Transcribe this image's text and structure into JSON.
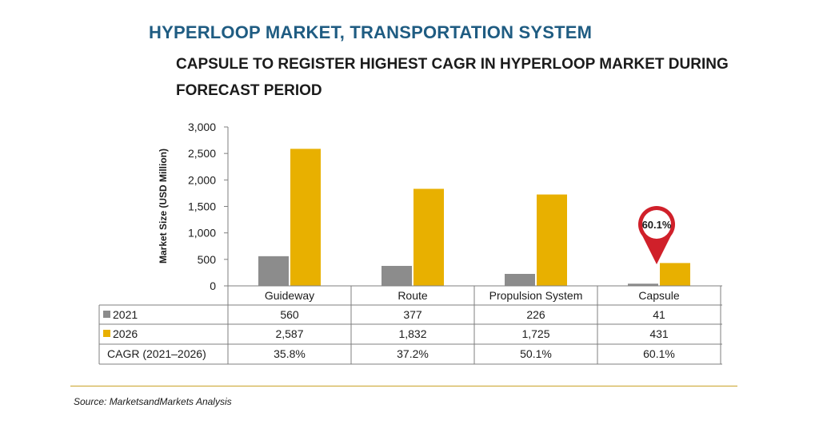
{
  "title": "HYPERLOOP MARKET, TRANSPORTATION SYSTEM",
  "subtitle_line1": "CAPSULE TO REGISTER HIGHEST CAGR IN HYPERLOOP MARKET DURING",
  "subtitle_line2": "FORECAST PERIOD",
  "source": "Source: MarketsandMarkets Analysis",
  "callout_label": "60.1%",
  "colors": {
    "title": "#1f5c82",
    "series_2021": "#8c8c8c",
    "series_2026": "#e8b000",
    "callout": "#d0202a",
    "divider": "#c9a227"
  },
  "chart_data": {
    "type": "bar",
    "categories": [
      "Guideway",
      "Route",
      "Propulsion System",
      "Capsule"
    ],
    "series": [
      {
        "name": "2021",
        "values": [
          560,
          377,
          226,
          41
        ],
        "value_labels": [
          "560",
          "377",
          "226",
          "41"
        ]
      },
      {
        "name": "2026",
        "values": [
          2587,
          1832,
          1725,
          431
        ],
        "value_labels": [
          "2,587",
          "1,832",
          "1,725",
          "431"
        ]
      }
    ],
    "extra_row": {
      "label": "CAGR (2021–2026)",
      "values": [
        "35.8%",
        "37.2%",
        "50.1%",
        "60.1%"
      ]
    },
    "ylabel": "Market Size (USD Million)",
    "ylim": [
      0,
      3000
    ],
    "yticks": [
      0,
      500,
      1000,
      1500,
      2000,
      2500,
      3000
    ],
    "ytick_labels": [
      "0",
      "500",
      "1,000",
      "1,500",
      "2,000",
      "2,500",
      "3,000"
    ],
    "grid": false,
    "legend": "data-table"
  }
}
